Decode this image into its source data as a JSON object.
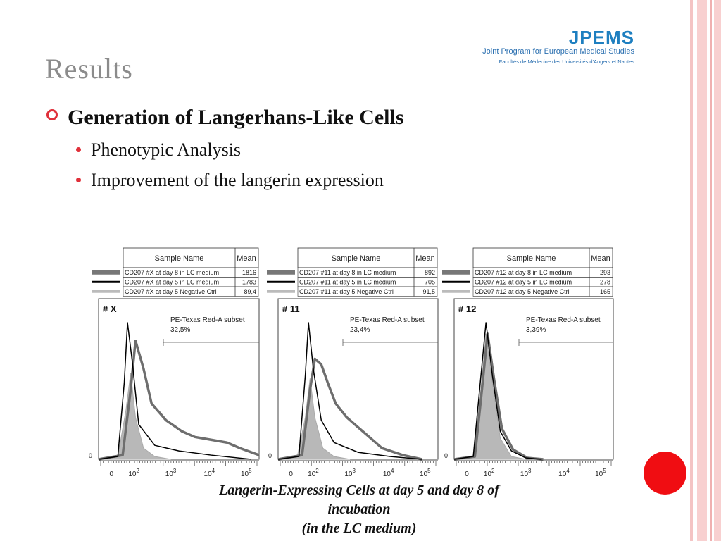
{
  "slide": {
    "title": "Results",
    "bullet": "Generation of Langerhans-Like Cells",
    "subbullets": [
      "Phenotypic Analysis",
      "Improvement of the langerin expression"
    ],
    "caption_line1": "Langerin-Expressing Cells at day 5 and day 8 of",
    "caption_line2": "incubation",
    "caption_line3": "(in the LC medium)"
  },
  "logo": {
    "name": "JPEMS",
    "line1": "Joint Program for European Medical Studies",
    "line2": "Facultés de Médecine des Universités d'Angers et Nantes"
  },
  "colors": {
    "accent": "#e0303a",
    "title_gray": "#8b8b8b",
    "logo_blue": "#1e7fc0",
    "circle": "#f00d12"
  },
  "table_headers": {
    "sample": "Sample Name",
    "mean": "Mean"
  },
  "panels": [
    {
      "id": "# X",
      "rows": [
        {
          "name": "CD207 #X at day 8 in LC medium",
          "mean": "1816"
        },
        {
          "name": "CD207 #X at day 5 in LC medium",
          "mean": "1783"
        },
        {
          "name": "CD207 #X at day 5 Negative Ctrl",
          "mean": "89,4"
        }
      ],
      "subset_label": "PE-Texas Red-A subset",
      "subset_value": "32,5%"
    },
    {
      "id": "# 11",
      "rows": [
        {
          "name": "CD207 #11 at day 8 in LC medium",
          "mean": "892"
        },
        {
          "name": "CD207 #11 at day 5 in LC medium",
          "mean": "705"
        },
        {
          "name": "CD207 #11 at day 5 Negative Ctrl",
          "mean": "91,5"
        }
      ],
      "subset_label": "PE-Texas Red-A subset",
      "subset_value": "23,4%"
    },
    {
      "id": "# 12",
      "rows": [
        {
          "name": "CD207 #12 at day 8 in LC medium",
          "mean": "293"
        },
        {
          "name": "CD207 #12 at day 5 in LC medium",
          "mean": "278"
        },
        {
          "name": "CD207 #12 at day 5 Negative Ctrl",
          "mean": "165"
        }
      ],
      "subset_label": "PE-Texas Red-A subset",
      "subset_value": "3,39%"
    }
  ],
  "chart_data": [
    {
      "type": "line",
      "title": "# X",
      "xscale": "log",
      "x_ticks": [
        "0",
        "10^2",
        "10^3",
        "10^4",
        "10^5"
      ],
      "y_ticks": [
        "0"
      ],
      "series": [
        {
          "name": "CD207 #X at day 8 in LC medium",
          "mean": 1816
        },
        {
          "name": "CD207 #X at day 5 in LC medium",
          "mean": 1783
        },
        {
          "name": "CD207 #X at day 5 Negative Ctrl",
          "mean": 89.4
        }
      ],
      "gate": {
        "label": "PE-Texas Red-A subset",
        "value": "32,5%"
      }
    },
    {
      "type": "line",
      "title": "# 11",
      "xscale": "log",
      "x_ticks": [
        "0",
        "10^2",
        "10^3",
        "10^4",
        "10^5"
      ],
      "y_ticks": [
        "0"
      ],
      "series": [
        {
          "name": "CD207 #11 at day 8 in LC medium",
          "mean": 892
        },
        {
          "name": "CD207 #11 at day 5 in LC medium",
          "mean": 705
        },
        {
          "name": "CD207 #11 at day 5 Negative Ctrl",
          "mean": 91.5
        }
      ],
      "gate": {
        "label": "PE-Texas Red-A subset",
        "value": "23,4%"
      }
    },
    {
      "type": "line",
      "title": "# 12",
      "xscale": "log",
      "x_ticks": [
        "0",
        "10^2",
        "10^3",
        "10^4",
        "10^5"
      ],
      "y_ticks": [
        "0"
      ],
      "series": [
        {
          "name": "CD207 #12 at day 8 in LC medium",
          "mean": 293
        },
        {
          "name": "CD207 #12 at day 5 in LC medium",
          "mean": 278
        },
        {
          "name": "CD207 #12 at day 5 Negative Ctrl",
          "mean": 165
        }
      ],
      "gate": {
        "label": "PE-Texas Red-A subset",
        "value": "3,39%"
      }
    }
  ]
}
